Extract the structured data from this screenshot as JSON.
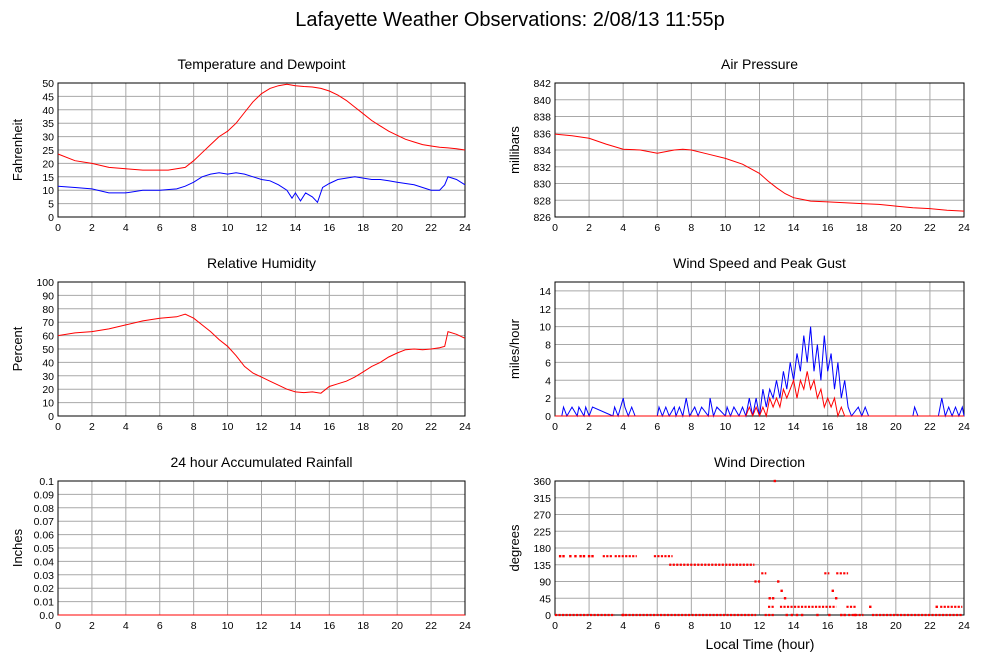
{
  "title": "Lafayette Weather Observations: 2/08/13 11:55p",
  "x_axis_label": "Local Time (hour)",
  "colors": {
    "red": "#ff0000",
    "blue": "#0000ff",
    "grid": "#a8a8a8",
    "frame": "#000000"
  },
  "chart_data": [
    {
      "id": "temp",
      "type": "line",
      "title": "Temperature and Dewpoint",
      "ylabel": "Fahrenheit",
      "xlim": [
        0,
        24
      ],
      "ylim": [
        0,
        50
      ],
      "xticks": [
        0,
        2,
        4,
        6,
        8,
        10,
        12,
        14,
        16,
        18,
        20,
        22,
        24
      ],
      "yticks": [
        0,
        5,
        10,
        15,
        20,
        25,
        30,
        35,
        40,
        45,
        50
      ],
      "grid": true,
      "series": [
        {
          "color": "#ff0000",
          "x": [
            0,
            1,
            2,
            3,
            4,
            5,
            6,
            6.5,
            7,
            7.5,
            8,
            8.5,
            9,
            9.5,
            10,
            10.5,
            11,
            11.5,
            12,
            12.5,
            13,
            13.5,
            14,
            14.5,
            15,
            15.5,
            16,
            16.5,
            17,
            17.5,
            18,
            18.5,
            19,
            19.5,
            20,
            20.5,
            21,
            21.5,
            22,
            22.5,
            23,
            23.5,
            24
          ],
          "y": [
            23.5,
            21,
            20,
            18.5,
            18,
            17.5,
            17.5,
            17.5,
            18,
            18.5,
            21,
            24,
            27,
            30,
            32,
            35,
            39,
            43,
            46,
            48,
            49,
            49.5,
            49,
            48.7,
            48.5,
            48,
            47,
            45.5,
            43.5,
            41,
            38.5,
            36,
            34,
            32,
            30.5,
            29,
            28,
            27,
            26.5,
            26,
            25.8,
            25.5,
            25
          ]
        },
        {
          "color": "#0000ff",
          "x": [
            0,
            1,
            2,
            3,
            4,
            5,
            6,
            7,
            7.5,
            8,
            8.5,
            9,
            9.5,
            10,
            10.5,
            11,
            11.5,
            12,
            12.5,
            13,
            13.5,
            13.8,
            14,
            14.3,
            14.6,
            15,
            15.3,
            15.6,
            16,
            16.5,
            17,
            17.5,
            18,
            18.5,
            19,
            19.5,
            20,
            20.5,
            21,
            21.5,
            22,
            22.5,
            22.8,
            23,
            23.5,
            24
          ],
          "y": [
            11.5,
            11,
            10.5,
            9,
            9,
            10,
            10,
            10.5,
            11.5,
            13,
            15,
            16,
            16.5,
            16,
            16.5,
            16,
            15,
            14,
            13.5,
            12,
            10,
            7,
            9,
            6,
            9,
            7.5,
            5.5,
            11,
            12.5,
            14,
            14.5,
            15,
            14.5,
            14,
            14,
            13.5,
            13,
            12.5,
            12,
            11,
            10,
            10,
            12,
            15,
            14,
            12
          ]
        }
      ]
    },
    {
      "id": "pressure",
      "type": "line",
      "title": "Air Pressure",
      "ylabel": "millibars",
      "xlim": [
        0,
        24
      ],
      "ylim": [
        826,
        842
      ],
      "xticks": [
        0,
        2,
        4,
        6,
        8,
        10,
        12,
        14,
        16,
        18,
        20,
        22,
        24
      ],
      "yticks": [
        826,
        828,
        830,
        832,
        834,
        836,
        838,
        840,
        842
      ],
      "grid": true,
      "series": [
        {
          "color": "#ff0000",
          "x": [
            0,
            1,
            2,
            3,
            4,
            5,
            6,
            7,
            7.5,
            8,
            9,
            10,
            11,
            12,
            12.5,
            13,
            13.5,
            14,
            14.5,
            15,
            16,
            17,
            18,
            19,
            20,
            21,
            22,
            23,
            24
          ],
          "y": [
            835.9,
            835.7,
            835.4,
            834.7,
            834.1,
            834,
            833.6,
            834,
            834.1,
            834,
            833.5,
            833,
            832.3,
            831.2,
            830.3,
            829.5,
            828.8,
            828.3,
            828.1,
            827.9,
            827.8,
            827.7,
            827.6,
            827.5,
            827.3,
            827.1,
            827,
            826.8,
            826.7
          ]
        }
      ]
    },
    {
      "id": "humidity",
      "type": "line",
      "title": "Relative Humidity",
      "ylabel": "Percent",
      "xlim": [
        0,
        24
      ],
      "ylim": [
        0,
        100
      ],
      "xticks": [
        0,
        2,
        4,
        6,
        8,
        10,
        12,
        14,
        16,
        18,
        20,
        22,
        24
      ],
      "yticks": [
        0,
        10,
        20,
        30,
        40,
        50,
        60,
        70,
        80,
        90,
        100
      ],
      "grid": true,
      "series": [
        {
          "color": "#ff0000",
          "x": [
            0,
            1,
            2,
            3,
            4,
            5,
            6,
            7,
            7.5,
            8,
            8.5,
            9,
            9.5,
            10,
            10.5,
            11,
            11.5,
            12,
            12.5,
            13,
            13.5,
            14,
            14.5,
            15,
            15.5,
            16,
            16.5,
            17,
            17.5,
            18,
            18.5,
            19,
            19.5,
            20,
            20.5,
            21,
            21.5,
            22,
            22.5,
            22.8,
            23,
            23.5,
            24
          ],
          "y": [
            60,
            62,
            63,
            65,
            68,
            71,
            73,
            74,
            76,
            73,
            68,
            63,
            57,
            52,
            45,
            37,
            32,
            29,
            26,
            23,
            20,
            18,
            17.5,
            18,
            17,
            22,
            24,
            26,
            29,
            33,
            37,
            40,
            44,
            47,
            49.5,
            50,
            49.5,
            50,
            51,
            52,
            63,
            61,
            58
          ]
        }
      ]
    },
    {
      "id": "wind",
      "type": "line",
      "title": "Wind Speed and Peak Gust",
      "ylabel": "miles/hour",
      "xlim": [
        0,
        24
      ],
      "ylim": [
        0,
        15
      ],
      "xticks": [
        0,
        2,
        4,
        6,
        8,
        10,
        12,
        14,
        16,
        18,
        20,
        22,
        24
      ],
      "yticks": [
        0,
        2,
        4,
        6,
        8,
        10,
        12,
        14
      ],
      "grid": true,
      "series": [
        {
          "color": "#0000ff",
          "x": [
            0,
            0.4,
            0.5,
            0.7,
            1,
            1.3,
            1.4,
            1.7,
            1.8,
            2,
            2.2,
            3.4,
            3.5,
            3.7,
            4,
            4.1,
            4.3,
            4.5,
            4.7,
            5,
            6,
            6.1,
            6.3,
            6.5,
            6.7,
            7,
            7.1,
            7.3,
            7.5,
            7.7,
            7.9,
            8.2,
            8.4,
            8.6,
            9,
            9.1,
            9.3,
            9.5,
            10,
            10.1,
            10.3,
            10.5,
            10.8,
            11,
            11.2,
            11.4,
            11.6,
            11.8,
            12,
            12.2,
            12.4,
            12.6,
            12.8,
            13,
            13.2,
            13.4,
            13.6,
            13.8,
            14,
            14.2,
            14.4,
            14.6,
            14.8,
            15,
            15.2,
            15.4,
            15.6,
            15.8,
            16,
            16.2,
            16.4,
            16.6,
            16.8,
            17,
            17.2,
            17.4,
            17.8,
            18,
            18.2,
            18.4,
            21,
            21.1,
            21.3,
            22.5,
            22.7,
            22.9,
            23.1,
            23.3,
            23.5,
            23.7,
            23.9,
            24
          ],
          "y": [
            0,
            0,
            1,
            0,
            1,
            0,
            1,
            0,
            1,
            0,
            1,
            0,
            1,
            0,
            2,
            1,
            0,
            1,
            0,
            0,
            0,
            1,
            0,
            1,
            0,
            1,
            0,
            1,
            0,
            2,
            0,
            1,
            0,
            1,
            0,
            2,
            0,
            1,
            0,
            1,
            0,
            1,
            0,
            1,
            0,
            2,
            0,
            2,
            0,
            3,
            1,
            3,
            2,
            4,
            2,
            5,
            3,
            6,
            4,
            7,
            5,
            9,
            6,
            10,
            5,
            8,
            4,
            9,
            5,
            7,
            3,
            6,
            2,
            4,
            1,
            0,
            1,
            0,
            1,
            0,
            0,
            1,
            0,
            0,
            2,
            0,
            1,
            0,
            1,
            0,
            1,
            0
          ]
        },
        {
          "color": "#ff0000",
          "x": [
            0,
            11.2,
            11.4,
            11.6,
            11.8,
            12,
            12.2,
            12.4,
            12.6,
            12.8,
            13,
            13.2,
            13.4,
            13.6,
            13.8,
            14,
            14.2,
            14.4,
            14.6,
            14.8,
            15,
            15.2,
            15.4,
            15.6,
            15.8,
            16,
            16.2,
            16.4,
            16.6,
            16.8,
            17,
            17.2,
            24
          ],
          "y": [
            0,
            0,
            1,
            0,
            1,
            0,
            1,
            0,
            2,
            1,
            2,
            1,
            3,
            2,
            3,
            4,
            2,
            4,
            3,
            5,
            3,
            4,
            2,
            3,
            1,
            2,
            1,
            2,
            0,
            1,
            0,
            0,
            0
          ]
        }
      ]
    },
    {
      "id": "rain",
      "type": "line",
      "title": "24 hour Accumulated Rainfall",
      "ylabel": "Inches",
      "xlim": [
        0,
        24
      ],
      "ylim": [
        0,
        0.1
      ],
      "xticks": [
        0,
        2,
        4,
        6,
        8,
        10,
        12,
        14,
        16,
        18,
        20,
        22,
        24
      ],
      "yticks": [
        "0.0",
        "0.01",
        "0.02",
        "0.03",
        "0.04",
        "0.05",
        "0.06",
        "0.07",
        "0.08",
        "0.09",
        "0.1"
      ],
      "grid": true,
      "series": [
        {
          "color": "#ff0000",
          "x": [
            0,
            24
          ],
          "y": [
            0,
            0
          ]
        }
      ]
    },
    {
      "id": "direction",
      "type": "scatter",
      "title": "Wind Direction",
      "ylabel": "degrees",
      "xlim": [
        0,
        24
      ],
      "ylim": [
        0,
        360
      ],
      "xticks": [
        0,
        2,
        4,
        6,
        8,
        10,
        12,
        14,
        16,
        18,
        20,
        22,
        24
      ],
      "yticks": [
        0,
        45,
        90,
        135,
        180,
        225,
        270,
        315,
        360
      ],
      "grid": true,
      "segments": [
        {
          "y": 0,
          "x": [
            0,
            3.5
          ]
        },
        {
          "y": 0,
          "x": [
            3.9,
            11.8
          ]
        },
        {
          "y": 0,
          "x": [
            12.3,
            12.9
          ]
        },
        {
          "y": 0,
          "x": [
            17.2,
            18.1
          ]
        },
        {
          "y": 0,
          "x": [
            18.6,
            23.9
          ]
        },
        {
          "y": 158,
          "x": [
            2.8,
            3.4
          ]
        },
        {
          "y": 158,
          "x": [
            3.5,
            4.8
          ]
        },
        {
          "y": 158,
          "x": [
            5.8,
            6.9
          ]
        },
        {
          "y": 135,
          "x": [
            6.7,
            11.7
          ]
        },
        {
          "y": 90,
          "x": [
            11.7,
            12.1
          ]
        },
        {
          "y": 112,
          "x": [
            12.1,
            12.4
          ]
        },
        {
          "y": 22,
          "x": [
            12.5,
            12.9
          ]
        },
        {
          "y": 22,
          "x": [
            13.2,
            16.5
          ]
        },
        {
          "y": 112,
          "x": [
            15.8,
            16.1
          ]
        },
        {
          "y": 112,
          "x": [
            16.5,
            17.2
          ]
        },
        {
          "y": 22,
          "x": [
            17.1,
            17.7
          ]
        },
        {
          "y": 22,
          "x": [
            22.6,
            23.9
          ]
        }
      ],
      "points": [
        [
          0.3,
          158
        ],
        [
          0.5,
          158
        ],
        [
          0.9,
          158
        ],
        [
          1.2,
          158
        ],
        [
          1.5,
          158
        ],
        [
          1.7,
          158
        ],
        [
          2.0,
          158
        ],
        [
          2.2,
          158
        ],
        [
          4.0,
          0
        ],
        [
          12.6,
          45
        ],
        [
          12.8,
          45
        ],
        [
          13.1,
          90
        ],
        [
          13.3,
          65
        ],
        [
          13.5,
          45
        ],
        [
          13.6,
          0
        ],
        [
          13.9,
          0
        ],
        [
          14.2,
          0
        ],
        [
          14.5,
          0
        ],
        [
          15.4,
          0
        ],
        [
          16.1,
          0
        ],
        [
          16.3,
          65
        ],
        [
          16.5,
          45
        ],
        [
          16.8,
          0
        ],
        [
          17.0,
          0
        ],
        [
          17.6,
          0
        ],
        [
          18.5,
          22
        ],
        [
          12.9,
          360
        ],
        [
          22.4,
          22
        ]
      ]
    }
  ]
}
